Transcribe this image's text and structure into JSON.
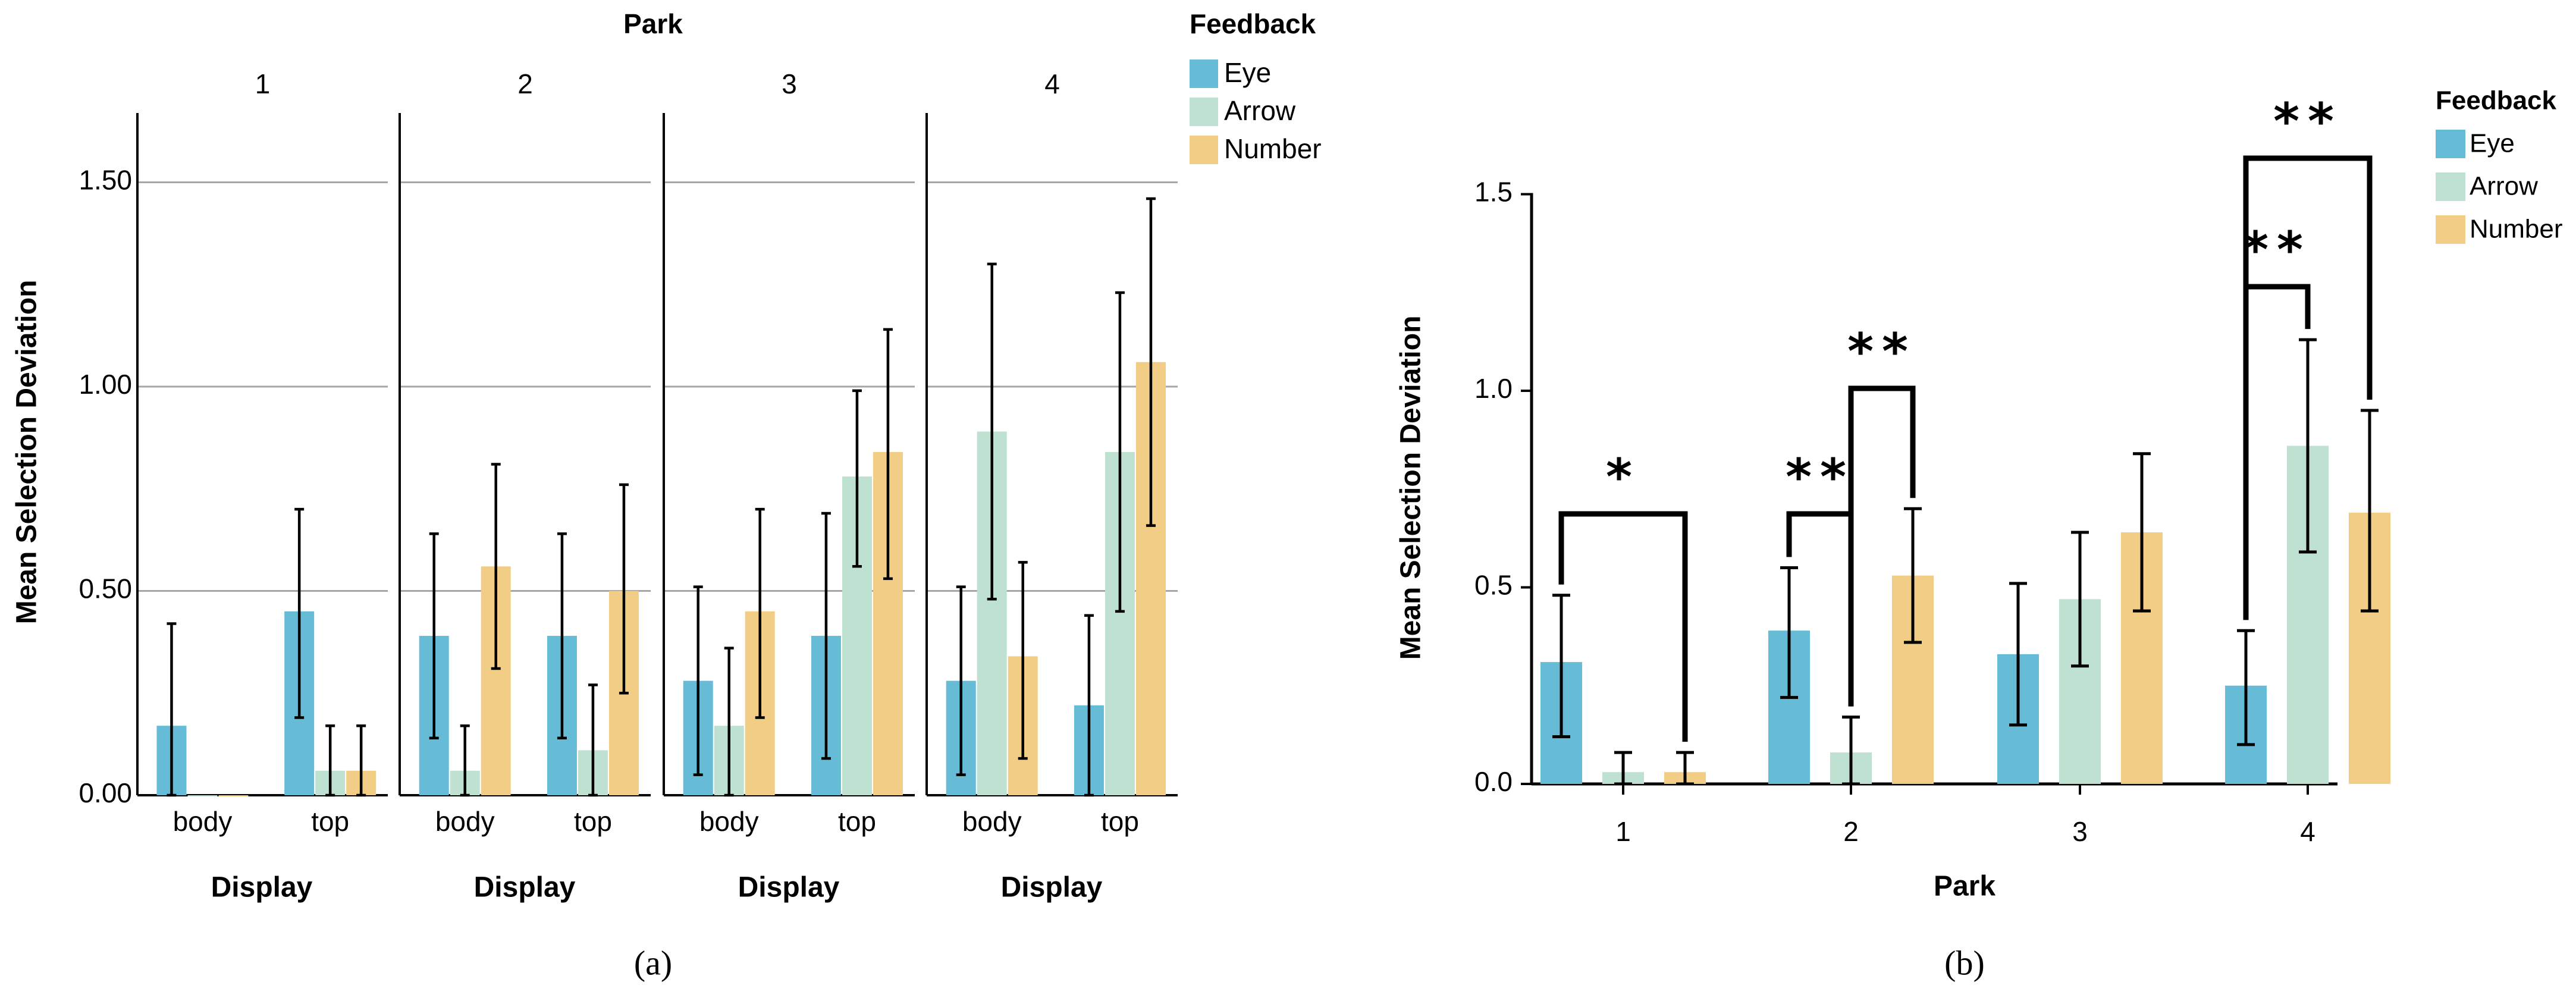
{
  "colors": {
    "eye": "#66bcd7",
    "arrow": "#bfe1d1",
    "number": "#f1cd85",
    "axis": "#000000",
    "grid": "#a6a6a6"
  },
  "chart_data": [
    {
      "id": "a",
      "type": "bar",
      "caption": "(a)",
      "facet_title": "Park",
      "facets": [
        "1",
        "2",
        "3",
        "4"
      ],
      "categories": [
        "body",
        "top"
      ],
      "xlabel": "Display",
      "ylabel": "Mean Selection Deviation",
      "ylim": [
        0,
        1.67
      ],
      "yticks": [
        0,
        0.5,
        1.0,
        1.5
      ],
      "ytick_labels": [
        "0.00",
        "0.50",
        "1.00",
        "1.50"
      ],
      "grid": true,
      "legend": {
        "title": "Feedback",
        "entries": [
          "Eye",
          "Arrow",
          "Number"
        ],
        "placement": "right"
      },
      "series": [
        {
          "name": "Eye",
          "values": [
            [
              0.17,
              0.45
            ],
            [
              0.39,
              0.39
            ],
            [
              0.28,
              0.39
            ],
            [
              0.28,
              0.22
            ]
          ],
          "ci_low": [
            [
              0.0,
              0.19
            ],
            [
              0.14,
              0.14
            ],
            [
              0.05,
              0.09
            ],
            [
              0.05,
              0.0
            ]
          ],
          "ci_high": [
            [
              0.42,
              0.7
            ],
            [
              0.64,
              0.64
            ],
            [
              0.51,
              0.69
            ],
            [
              0.51,
              0.44
            ]
          ]
        },
        {
          "name": "Arrow",
          "values": [
            [
              0.0,
              0.06
            ],
            [
              0.06,
              0.11
            ],
            [
              0.17,
              0.78
            ],
            [
              0.89,
              0.84
            ]
          ],
          "ci_low": [
            [
              0.0,
              0.0
            ],
            [
              0.0,
              0.0
            ],
            [
              0.0,
              0.56
            ],
            [
              0.48,
              0.45
            ]
          ],
          "ci_high": [
            [
              0.0,
              0.17
            ],
            [
              0.17,
              0.27
            ],
            [
              0.36,
              0.99
            ],
            [
              1.3,
              1.23
            ]
          ]
        },
        {
          "name": "Number",
          "values": [
            [
              0.0,
              0.06
            ],
            [
              0.56,
              0.5
            ],
            [
              0.45,
              0.84
            ],
            [
              0.34,
              1.06
            ]
          ],
          "ci_low": [
            [
              0.0,
              0.0
            ],
            [
              0.31,
              0.25
            ],
            [
              0.19,
              0.53
            ],
            [
              0.09,
              0.66
            ]
          ],
          "ci_high": [
            [
              0.0,
              0.17
            ],
            [
              0.81,
              0.76
            ],
            [
              0.7,
              1.14
            ],
            [
              0.57,
              1.46
            ]
          ]
        }
      ]
    },
    {
      "id": "b",
      "type": "bar",
      "caption": "(b)",
      "categories": [
        "1",
        "2",
        "3",
        "4"
      ],
      "xlabel": "Park",
      "ylabel": "Mean Selection Deviation",
      "ylim": [
        0,
        1.5
      ],
      "yticks": [
        0,
        0.5,
        1.0,
        1.5
      ],
      "ytick_labels": [
        "0.0",
        "0.5",
        "1.0",
        "1.5"
      ],
      "grid": false,
      "legend": {
        "title": "Feedback",
        "entries": [
          "Eye",
          "Arrow",
          "Number"
        ],
        "placement": "top-right"
      },
      "series": [
        {
          "name": "Eye",
          "values": [
            0.31,
            0.39,
            0.33,
            0.25
          ],
          "ci_low": [
            0.12,
            0.22,
            0.15,
            0.1
          ],
          "ci_high": [
            0.48,
            0.55,
            0.51,
            0.39
          ]
        },
        {
          "name": "Arrow",
          "values": [
            0.03,
            0.08,
            0.47,
            0.86
          ],
          "ci_low": [
            0.0,
            0.0,
            0.3,
            0.59
          ],
          "ci_high": [
            0.08,
            0.17,
            0.64,
            1.13
          ]
        },
        {
          "name": "Number",
          "values": [
            0.03,
            0.53,
            0.64,
            0.69
          ],
          "ci_low": [
            0.0,
            0.36,
            0.44,
            0.44
          ],
          "ci_high": [
            0.08,
            0.7,
            0.84,
            0.95
          ]
        }
      ],
      "significance": [
        {
          "park": "1",
          "from": "Eye",
          "to": "Number",
          "label": "*"
        },
        {
          "park": "2",
          "from": "Eye",
          "to": "Arrow",
          "label": "**"
        },
        {
          "park": "2",
          "from": "Arrow",
          "to": "Number",
          "label": "**"
        },
        {
          "park": "4",
          "from": "Eye",
          "to": "Arrow",
          "label": "**"
        },
        {
          "park": "4",
          "from": "Eye",
          "to": "Number",
          "label": "**"
        }
      ]
    }
  ]
}
